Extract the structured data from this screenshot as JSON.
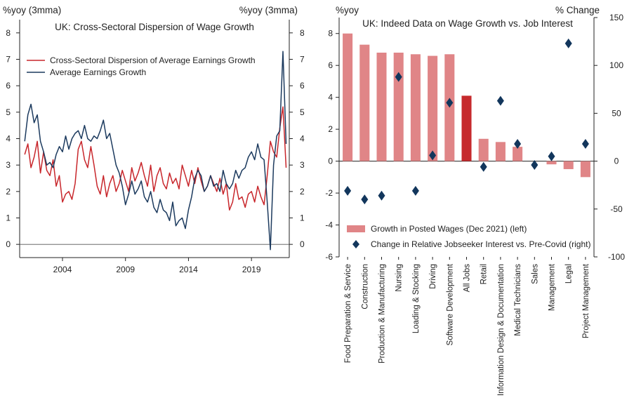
{
  "colors": {
    "dispersion": "#c8262b",
    "earnings": "#1c3a5e",
    "bar": "#e08587",
    "bar_highlight": "#c62a2d",
    "diamond": "#12365c",
    "axis": "#222222"
  },
  "chart_data": [
    {
      "type": "line",
      "title": "UK: Cross-Sectoral Dispersion of Wage Growth",
      "ylabel_left": "%yoy (3mma)",
      "ylabel_right": "%yoy (3mma)",
      "ylim": [
        -0.5,
        8.5
      ],
      "yticks": [
        0,
        1,
        2,
        3,
        4,
        5,
        6,
        7,
        8
      ],
      "xlim": [
        2000.6,
        2022.0
      ],
      "xticks": [
        2004,
        2009,
        2014,
        2019
      ],
      "series": [
        {
          "name": "Cross-Sectoral Dispersion of Average Earnings Growth",
          "color_key": "dispersion",
          "x": [
            2001.0,
            2001.25,
            2001.5,
            2001.75,
            2002.0,
            2002.25,
            2002.5,
            2002.75,
            2003.0,
            2003.25,
            2003.5,
            2003.75,
            2004.0,
            2004.25,
            2004.5,
            2004.75,
            2005.0,
            2005.25,
            2005.5,
            2005.75,
            2006.0,
            2006.25,
            2006.5,
            2006.75,
            2007.0,
            2007.25,
            2007.5,
            2007.75,
            2008.0,
            2008.25,
            2008.5,
            2008.75,
            2009.0,
            2009.25,
            2009.5,
            2009.75,
            2010.0,
            2010.25,
            2010.5,
            2010.75,
            2011.0,
            2011.25,
            2011.5,
            2011.75,
            2012.0,
            2012.25,
            2012.5,
            2012.75,
            2013.0,
            2013.25,
            2013.5,
            2013.75,
            2014.0,
            2014.25,
            2014.5,
            2014.75,
            2015.0,
            2015.25,
            2015.5,
            2015.75,
            2016.0,
            2016.25,
            2016.5,
            2016.75,
            2017.0,
            2017.25,
            2017.5,
            2017.75,
            2018.0,
            2018.25,
            2018.5,
            2018.75,
            2019.0,
            2019.25,
            2019.5,
            2019.75,
            2020.0,
            2020.25,
            2020.5,
            2020.75,
            2021.0,
            2021.25,
            2021.5,
            2021.75
          ],
          "values": [
            3.4,
            3.8,
            2.9,
            3.3,
            3.9,
            2.7,
            3.5,
            2.8,
            2.6,
            3.2,
            2.2,
            2.6,
            1.6,
            1.9,
            2.0,
            1.7,
            2.3,
            3.6,
            3.9,
            3.2,
            2.9,
            3.7,
            3.0,
            2.2,
            1.9,
            2.6,
            1.8,
            2.3,
            2.6,
            2.0,
            2.3,
            2.8,
            2.4,
            2.0,
            2.9,
            2.4,
            2.7,
            3.1,
            2.6,
            2.2,
            3.0,
            2.0,
            2.6,
            2.9,
            2.3,
            2.1,
            2.7,
            2.3,
            2.5,
            2.1,
            3.0,
            2.6,
            2.2,
            2.8,
            2.3,
            2.9,
            2.4,
            2.0,
            2.2,
            2.6,
            2.3,
            2.0,
            2.5,
            1.9,
            2.3,
            1.3,
            1.6,
            2.3,
            1.7,
            1.8,
            1.4,
            1.9,
            2.0,
            1.6,
            2.2,
            1.8,
            1.5,
            2.6,
            3.9,
            3.5,
            3.3,
            4.4,
            5.2,
            2.9
          ]
        },
        {
          "name": "Average Earnings Growth",
          "color_key": "earnings",
          "x": [
            2001.0,
            2001.25,
            2001.5,
            2001.75,
            2002.0,
            2002.25,
            2002.5,
            2002.75,
            2003.0,
            2003.25,
            2003.5,
            2003.75,
            2004.0,
            2004.25,
            2004.5,
            2004.75,
            2005.0,
            2005.25,
            2005.5,
            2005.75,
            2006.0,
            2006.25,
            2006.5,
            2006.75,
            2007.0,
            2007.25,
            2007.5,
            2007.75,
            2008.0,
            2008.25,
            2008.5,
            2008.75,
            2009.0,
            2009.25,
            2009.5,
            2009.75,
            2010.0,
            2010.25,
            2010.5,
            2010.75,
            2011.0,
            2011.25,
            2011.5,
            2011.75,
            2012.0,
            2012.25,
            2012.5,
            2012.75,
            2013.0,
            2013.25,
            2013.5,
            2013.75,
            2014.0,
            2014.25,
            2014.5,
            2014.75,
            2015.0,
            2015.25,
            2015.5,
            2015.75,
            2016.0,
            2016.25,
            2016.5,
            2016.75,
            2017.0,
            2017.25,
            2017.5,
            2017.75,
            2018.0,
            2018.25,
            2018.5,
            2018.75,
            2019.0,
            2019.25,
            2019.5,
            2019.75,
            2020.0,
            2020.25,
            2020.5,
            2020.75,
            2021.0,
            2021.25,
            2021.5,
            2021.75
          ],
          "values": [
            3.9,
            4.9,
            5.3,
            4.6,
            4.9,
            3.9,
            3.5,
            3.0,
            3.1,
            2.9,
            3.4,
            3.7,
            3.5,
            4.1,
            3.6,
            4.0,
            4.2,
            4.3,
            4.0,
            4.5,
            4.0,
            3.9,
            4.1,
            4.0,
            4.3,
            4.7,
            4.0,
            4.2,
            3.6,
            3.0,
            2.7,
            2.2,
            1.5,
            1.9,
            2.4,
            1.9,
            2.1,
            2.4,
            1.8,
            1.6,
            2.0,
            1.4,
            1.2,
            1.7,
            1.3,
            1.2,
            0.9,
            1.6,
            0.7,
            0.9,
            1.0,
            0.6,
            1.3,
            1.8,
            2.5,
            2.8,
            2.6,
            2.0,
            2.2,
            2.6,
            2.2,
            2.3,
            2.0,
            2.8,
            2.3,
            2.1,
            2.3,
            2.8,
            2.5,
            2.8,
            2.9,
            3.3,
            3.5,
            3.2,
            3.8,
            3.3,
            3.2,
            1.6,
            -0.2,
            3.0,
            4.1,
            4.3,
            7.3,
            3.8
          ]
        }
      ]
    },
    {
      "type": "bar",
      "title": "UK: Indeed Data on Wage Growth vs. Job Interest",
      "ylabel_left": "%yoy",
      "ylabel_right": "% Change",
      "ylim_left": [
        -6,
        9
      ],
      "yticks_left": [
        -6,
        -4,
        -2,
        0,
        2,
        4,
        6,
        8
      ],
      "ylim_right": [
        -100,
        150
      ],
      "yticks_right": [
        -100,
        -50,
        0,
        50,
        100,
        150
      ],
      "categories": [
        "Food Preparation & Service",
        "Construction",
        "Production & Manufacturing",
        "Nursing",
        "Loading & Stocking",
        "Driving",
        "Software Development",
        "All Jobs",
        "Retail",
        "Information Design & Documentation",
        "Medical Technicians",
        "Sales",
        "Management",
        "Legal",
        "Project Management"
      ],
      "highlight_category": "All Jobs",
      "series": [
        {
          "name": "Growth in Posted Wages (Dec 2021) (left)",
          "axis": "left",
          "values": [
            8.0,
            7.3,
            6.8,
            6.8,
            6.7,
            6.6,
            6.7,
            4.1,
            1.4,
            1.2,
            0.9,
            0.0,
            -0.2,
            -0.5,
            -1.0
          ]
        },
        {
          "name": "Change in Relative Jobseeker Interest vs. Pre-Covid (right)",
          "axis": "right",
          "values": [
            -31,
            -40,
            -36,
            88,
            -31,
            6,
            61,
            null,
            -6,
            63,
            18,
            -4,
            5,
            123,
            18
          ]
        }
      ]
    }
  ]
}
